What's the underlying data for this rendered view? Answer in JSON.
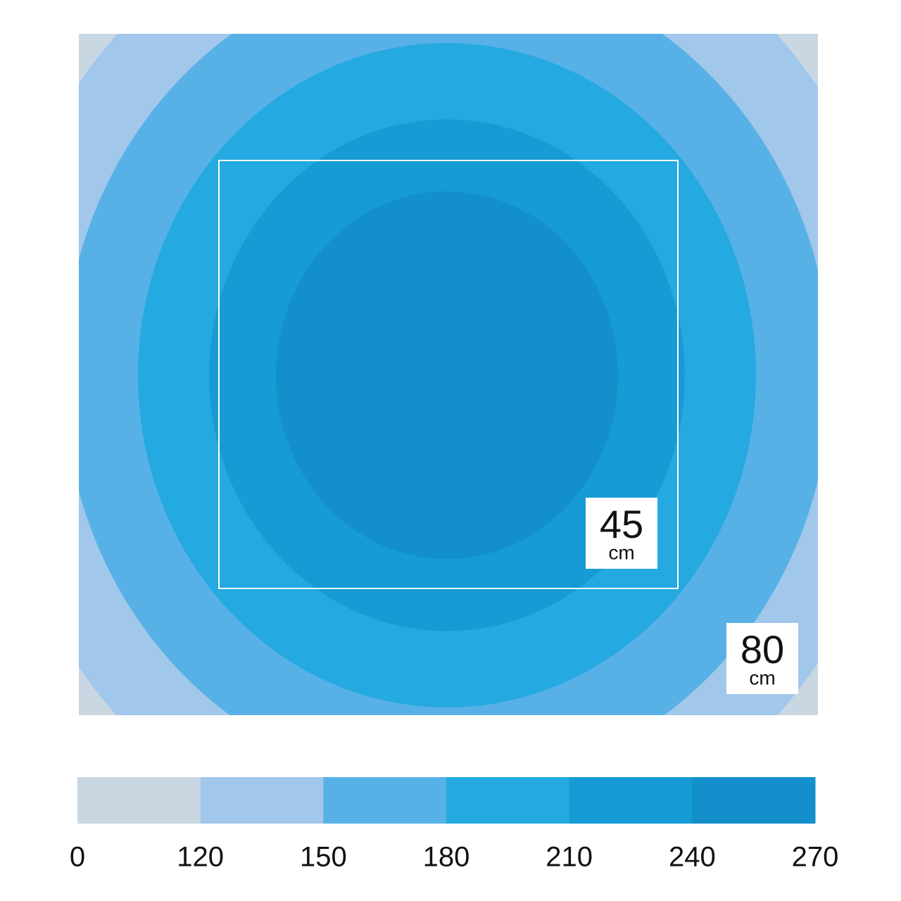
{
  "chart_data": {
    "type": "contour",
    "levels": [
      0,
      120,
      150,
      180,
      210,
      240,
      270
    ],
    "colors": [
      "#c9d7e3",
      "#a1c7eb",
      "#57b1e6",
      "#24a9e0",
      "#169bd4",
      "#1390cb"
    ],
    "annotations": [
      {
        "text": "45",
        "unit": "cm"
      },
      {
        "text": "80",
        "unit": "cm"
      }
    ]
  }
}
